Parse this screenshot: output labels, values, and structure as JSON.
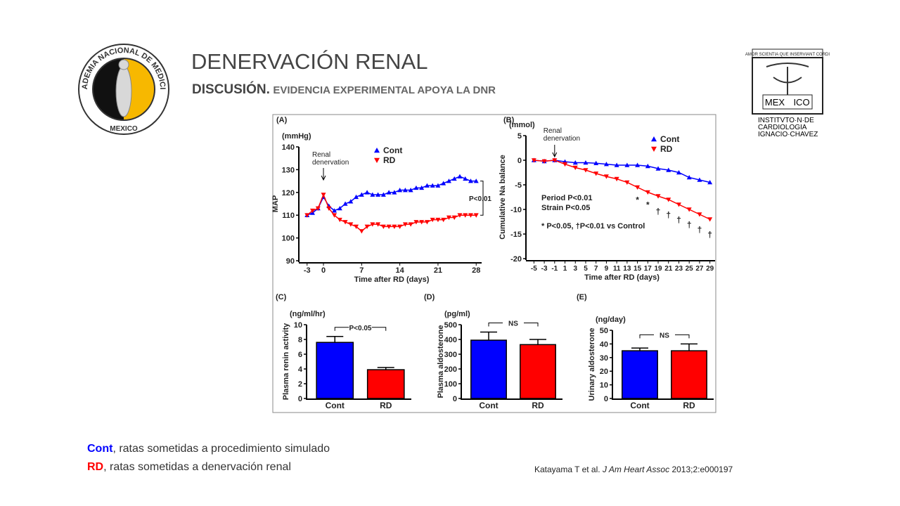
{
  "slide": {
    "title": "DENERVACIÓN RENAL",
    "subtitle_bold": "DISCUSIÓN.",
    "subtitle_rest": "EVIDENCIA EXPERIMENTAL APOYA LA DNR",
    "left_logo": {
      "ring": "ACADEMIA NACIONAL DE MEDICINA",
      "bottom": "MEXICO"
    },
    "right_logo": {
      "motto": "AMOR SCIENTIA QUE INSERVIANT CORDI",
      "mex": "MEX",
      "ico": "ICO",
      "lines": [
        "INSTITVTO·N·DE",
        "CARDIOLOGIA",
        "IGNACIO·CHAVEZ"
      ]
    },
    "notes": [
      {
        "term": "Cont",
        "text": ", ratas sometidas a procedimiento simulado"
      },
      {
        "term": "RD",
        "text": ", ratas sometidas a denervación renal"
      }
    ],
    "citation": {
      "authors": "Katayama T et al.",
      "journal": "J Am Heart Assoc",
      "ref": "2013;2:e000197"
    }
  },
  "chart_data": [
    {
      "type": "line",
      "panel": "(A)",
      "unit": "(mmHg)",
      "ylabel": "MAP",
      "xlabel": "Time after RD (days)",
      "annotation_lines": [
        "Renal",
        "denervation"
      ],
      "stat": "P<0.01",
      "x": [
        -3,
        -2,
        -1,
        0,
        1,
        2,
        3,
        4,
        5,
        6,
        7,
        8,
        9,
        10,
        11,
        12,
        13,
        14,
        15,
        16,
        17,
        18,
        19,
        20,
        21,
        22,
        23,
        24,
        25,
        26,
        27,
        28
      ],
      "series": [
        {
          "name": "Cont",
          "color": "#0000ff",
          "marker": "up",
          "values": [
            110,
            111,
            113,
            118,
            114,
            112,
            113,
            115,
            116,
            118,
            119,
            120,
            119,
            119,
            119,
            120,
            120,
            121,
            121,
            121,
            122,
            122,
            123,
            123,
            123,
            124,
            125,
            126,
            127,
            126,
            125,
            125
          ]
        },
        {
          "name": "RD",
          "color": "#ff0000",
          "marker": "down",
          "values": [
            110,
            112,
            113,
            119,
            113,
            110,
            108,
            107,
            106,
            105,
            103,
            105,
            106,
            106,
            105,
            105,
            105,
            105,
            106,
            106,
            107,
            107,
            107,
            108,
            108,
            108,
            109,
            109,
            110,
            110,
            110,
            110
          ]
        }
      ],
      "xlim": [
        -4,
        29
      ],
      "xticks": [
        -3,
        0,
        7,
        14,
        21,
        28
      ],
      "ylim": [
        90,
        140
      ],
      "yticks": [
        90,
        100,
        110,
        120,
        130,
        140
      ]
    },
    {
      "type": "line",
      "panel": "(B)",
      "unit": "(mmol)",
      "ylabel": "Cumulative Na balance",
      "xlabel": "Time after RD (days)",
      "annotation_lines": [
        "Renal",
        "denervation"
      ],
      "stats": [
        "Period  P<0.01",
        "Strain  P<0.05",
        "* P<0.05,  †P<0.01 vs Control"
      ],
      "x": [
        -5,
        -3,
        -1,
        1,
        3,
        5,
        7,
        9,
        11,
        13,
        15,
        17,
        19,
        21,
        23,
        25,
        27,
        29
      ],
      "series": [
        {
          "name": "Cont",
          "color": "#0000ff",
          "marker": "up",
          "values": [
            0,
            -0.2,
            0,
            -0.3,
            -0.5,
            -0.5,
            -0.6,
            -0.8,
            -1,
            -1,
            -1,
            -1.2,
            -1.7,
            -2,
            -2.5,
            -3.5,
            -4,
            -4.5
          ]
        },
        {
          "name": "RD",
          "color": "#ff0000",
          "marker": "down",
          "values": [
            0,
            -0.2,
            0,
            -0.8,
            -1.5,
            -2,
            -2.7,
            -3.3,
            -3.8,
            -4.5,
            -5.5,
            -6.5,
            -7.3,
            -8,
            -9,
            -10,
            -11,
            -12
          ]
        }
      ],
      "sig_marks": [
        {
          "x": 15,
          "label": "*"
        },
        {
          "x": 17,
          "label": "*"
        },
        {
          "x": 19,
          "label": "†"
        },
        {
          "x": 21,
          "label": "†"
        },
        {
          "x": 23,
          "label": "†"
        },
        {
          "x": 25,
          "label": "†"
        },
        {
          "x": 27,
          "label": "†"
        },
        {
          "x": 29,
          "label": "†"
        }
      ],
      "xlim": [
        -6,
        30
      ],
      "xticks": [
        -5,
        -3,
        -1,
        1,
        3,
        5,
        7,
        9,
        11,
        13,
        15,
        17,
        19,
        21,
        23,
        25,
        27,
        29
      ],
      "ylim": [
        -20,
        5
      ],
      "yticks": [
        -20,
        -15,
        -10,
        -5,
        0,
        5
      ]
    },
    {
      "type": "bar",
      "panel": "(C)",
      "unit": "(ng/ml/hr)",
      "ylabel": "Plasma renin activity",
      "stat": "P<0.05",
      "categories": [
        "Cont",
        "RD"
      ],
      "values": [
        7.6,
        3.9
      ],
      "errors": [
        0.8,
        0.3
      ],
      "colors": [
        "#0000ff",
        "#ff0000"
      ],
      "ylim": [
        0,
        10
      ],
      "yticks": [
        0,
        2,
        4,
        6,
        8,
        10
      ]
    },
    {
      "type": "bar",
      "panel": "(D)",
      "unit": "(pg/ml)",
      "ylabel": "Plasma aldosterone",
      "stat": "NS",
      "categories": [
        "Cont",
        "RD"
      ],
      "values": [
        395,
        365
      ],
      "errors": [
        55,
        35
      ],
      "colors": [
        "#0000ff",
        "#ff0000"
      ],
      "ylim": [
        0,
        500
      ],
      "yticks": [
        0,
        100,
        200,
        300,
        400,
        500
      ]
    },
    {
      "type": "bar",
      "panel": "(E)",
      "unit": "(ng/day)",
      "ylabel": "Urinary aldosterone",
      "stat": "NS",
      "categories": [
        "Cont",
        "RD"
      ],
      "values": [
        35,
        35
      ],
      "errors": [
        2,
        5
      ],
      "colors": [
        "#0000ff",
        "#ff0000"
      ],
      "ylim": [
        0,
        50
      ],
      "yticks": [
        0,
        10,
        20,
        30,
        40,
        50
      ]
    }
  ]
}
